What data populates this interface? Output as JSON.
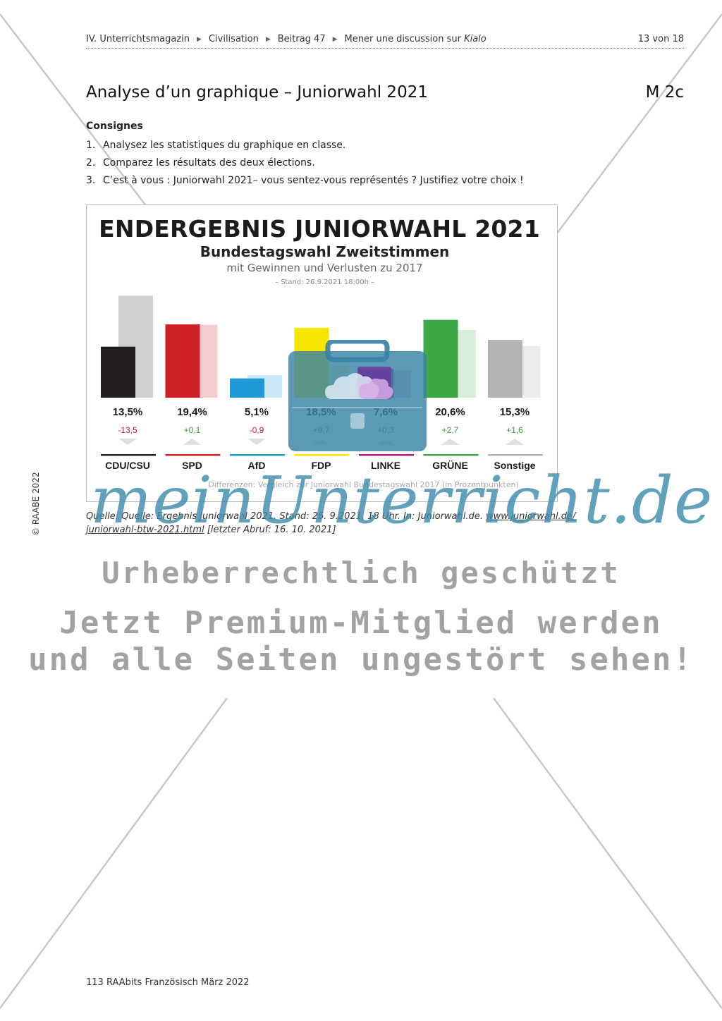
{
  "header": {
    "crumbs": [
      "IV. Unterrichtsmagazin",
      "Civilisation",
      "Beitrag 47",
      "Mener une discussion sur"
    ],
    "crumb_italic": "Kialo",
    "page": "13 von 18"
  },
  "title": "Analyse d’un graphique – Juniorwahl 2021",
  "code": "M 2c",
  "consignes": {
    "heading": "Consignes",
    "items": [
      {
        "n": "1.",
        "text": "Analysez les statistiques du graphique en classe."
      },
      {
        "n": "2.",
        "text": "Comparez les résultats des deux élections."
      },
      {
        "n": "3.",
        "text": "C’est à vous : Juniorwahl 2021– vous sentez-vous représentés ? Justifiez votre choix !"
      }
    ]
  },
  "chart_data": {
    "type": "bar",
    "title": "ENDERGEBNIS JUNIORWAHL 2021",
    "subtitle": "Bundestagswahl Zweitstimmen",
    "subtitle2": "mit Gewinnen und Verlusten zu 2017",
    "stand": "– Stand: 26.9.2021 18:00h –",
    "note": "Differenzen: Vergleich zur Juniorwahl Bundestagswahl 2017 (in Prozentpunkten)",
    "categories": [
      "CDU/CSU",
      "SPD",
      "AfD",
      "FDP",
      "LINKE",
      "GRÜNE",
      "Sonstige"
    ],
    "series": [
      {
        "values": [
          13.5,
          19.4,
          5.1,
          18.5,
          7.6,
          20.6,
          15.3
        ]
      },
      {
        "values": [
          27.0,
          19.3,
          6.0,
          8.8,
          7.3,
          17.9,
          13.7
        ]
      }
    ],
    "value_labels": [
      "13,5%",
      "19,4%",
      "5,1%",
      "18,5%",
      "7,6%",
      "20,6%",
      "15,3%"
    ],
    "diff_labels": [
      "-13,5",
      "+0,1",
      "-0,9",
      "+9,7",
      "+0,3",
      "+2,7",
      "+1,6"
    ],
    "diff_direction": [
      "down",
      "up",
      "down",
      "up",
      "up",
      "up",
      "up"
    ],
    "colors": [
      "#231f20",
      "#d11f26",
      "#1f9ad6",
      "#f6e500",
      "#b5197a",
      "#3ea746",
      "#b3b3b3"
    ],
    "colors_2017": [
      "#d0d0d0",
      "#f5cccc",
      "#cce8f6",
      "#fdf7b3",
      "#ecc6dc",
      "#d6eed7",
      "#ececec"
    ],
    "diff_colors": {
      "down": "#c51f25",
      "up": "#35a047"
    },
    "ylim": [
      0,
      28
    ]
  },
  "source": {
    "text1": "Quelle: Quelle: Ergebnis Juniorwahl 2021. Stand: 26. 9.2021, 18 Uhr. In: Juniorwahl.de.",
    "link1": "www.juniorwahl.de/",
    "link2": "juniorwahl-btw-2021.html",
    "text2": "[letzter Abruf: 16. 10. 2021]"
  },
  "watermark": {
    "script": "meinUnterricht.de",
    "line1": "Urheberrechtlich geschützt",
    "line2": "Jetzt Premium-Mitglied werden",
    "line3": "und alle Seiten ungestört sehen!"
  },
  "copyright": "© RAABE 2022",
  "footer": "113 RAAbits Französisch März 2022"
}
